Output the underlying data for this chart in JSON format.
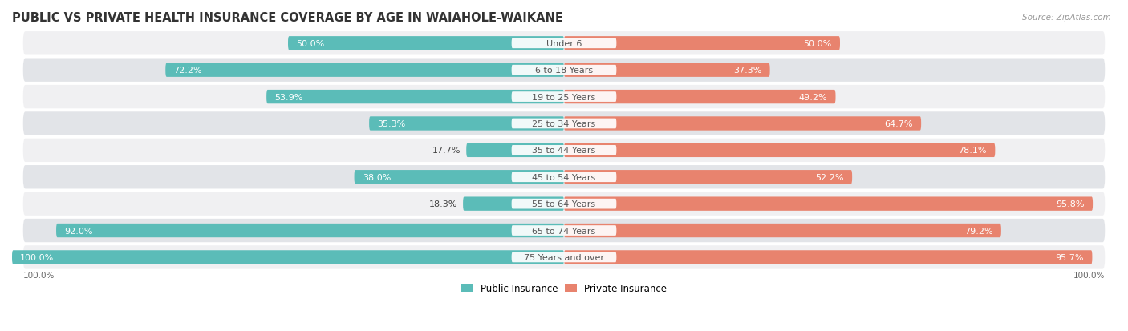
{
  "title": "PUBLIC VS PRIVATE HEALTH INSURANCE COVERAGE BY AGE IN WAIAHOLE-WAIKANE",
  "source": "Source: ZipAtlas.com",
  "categories": [
    "Under 6",
    "6 to 18 Years",
    "19 to 25 Years",
    "25 to 34 Years",
    "35 to 44 Years",
    "45 to 54 Years",
    "55 to 64 Years",
    "65 to 74 Years",
    "75 Years and over"
  ],
  "public_values": [
    50.0,
    72.2,
    53.9,
    35.3,
    17.7,
    38.0,
    18.3,
    92.0,
    100.0
  ],
  "private_values": [
    50.0,
    37.3,
    49.2,
    64.7,
    78.1,
    52.2,
    95.8,
    79.2,
    95.7
  ],
  "public_color": "#5bbcb8",
  "private_color": "#e8836e",
  "row_bg_colors": [
    "#f0f0f2",
    "#e2e4e8"
  ],
  "title_fontsize": 10.5,
  "label_fontsize": 8,
  "value_fontsize": 8,
  "legend_fontsize": 8.5,
  "bar_height": 0.52,
  "max_value": 100.0,
  "pub_inside_threshold": 20,
  "priv_inside_threshold": 20
}
